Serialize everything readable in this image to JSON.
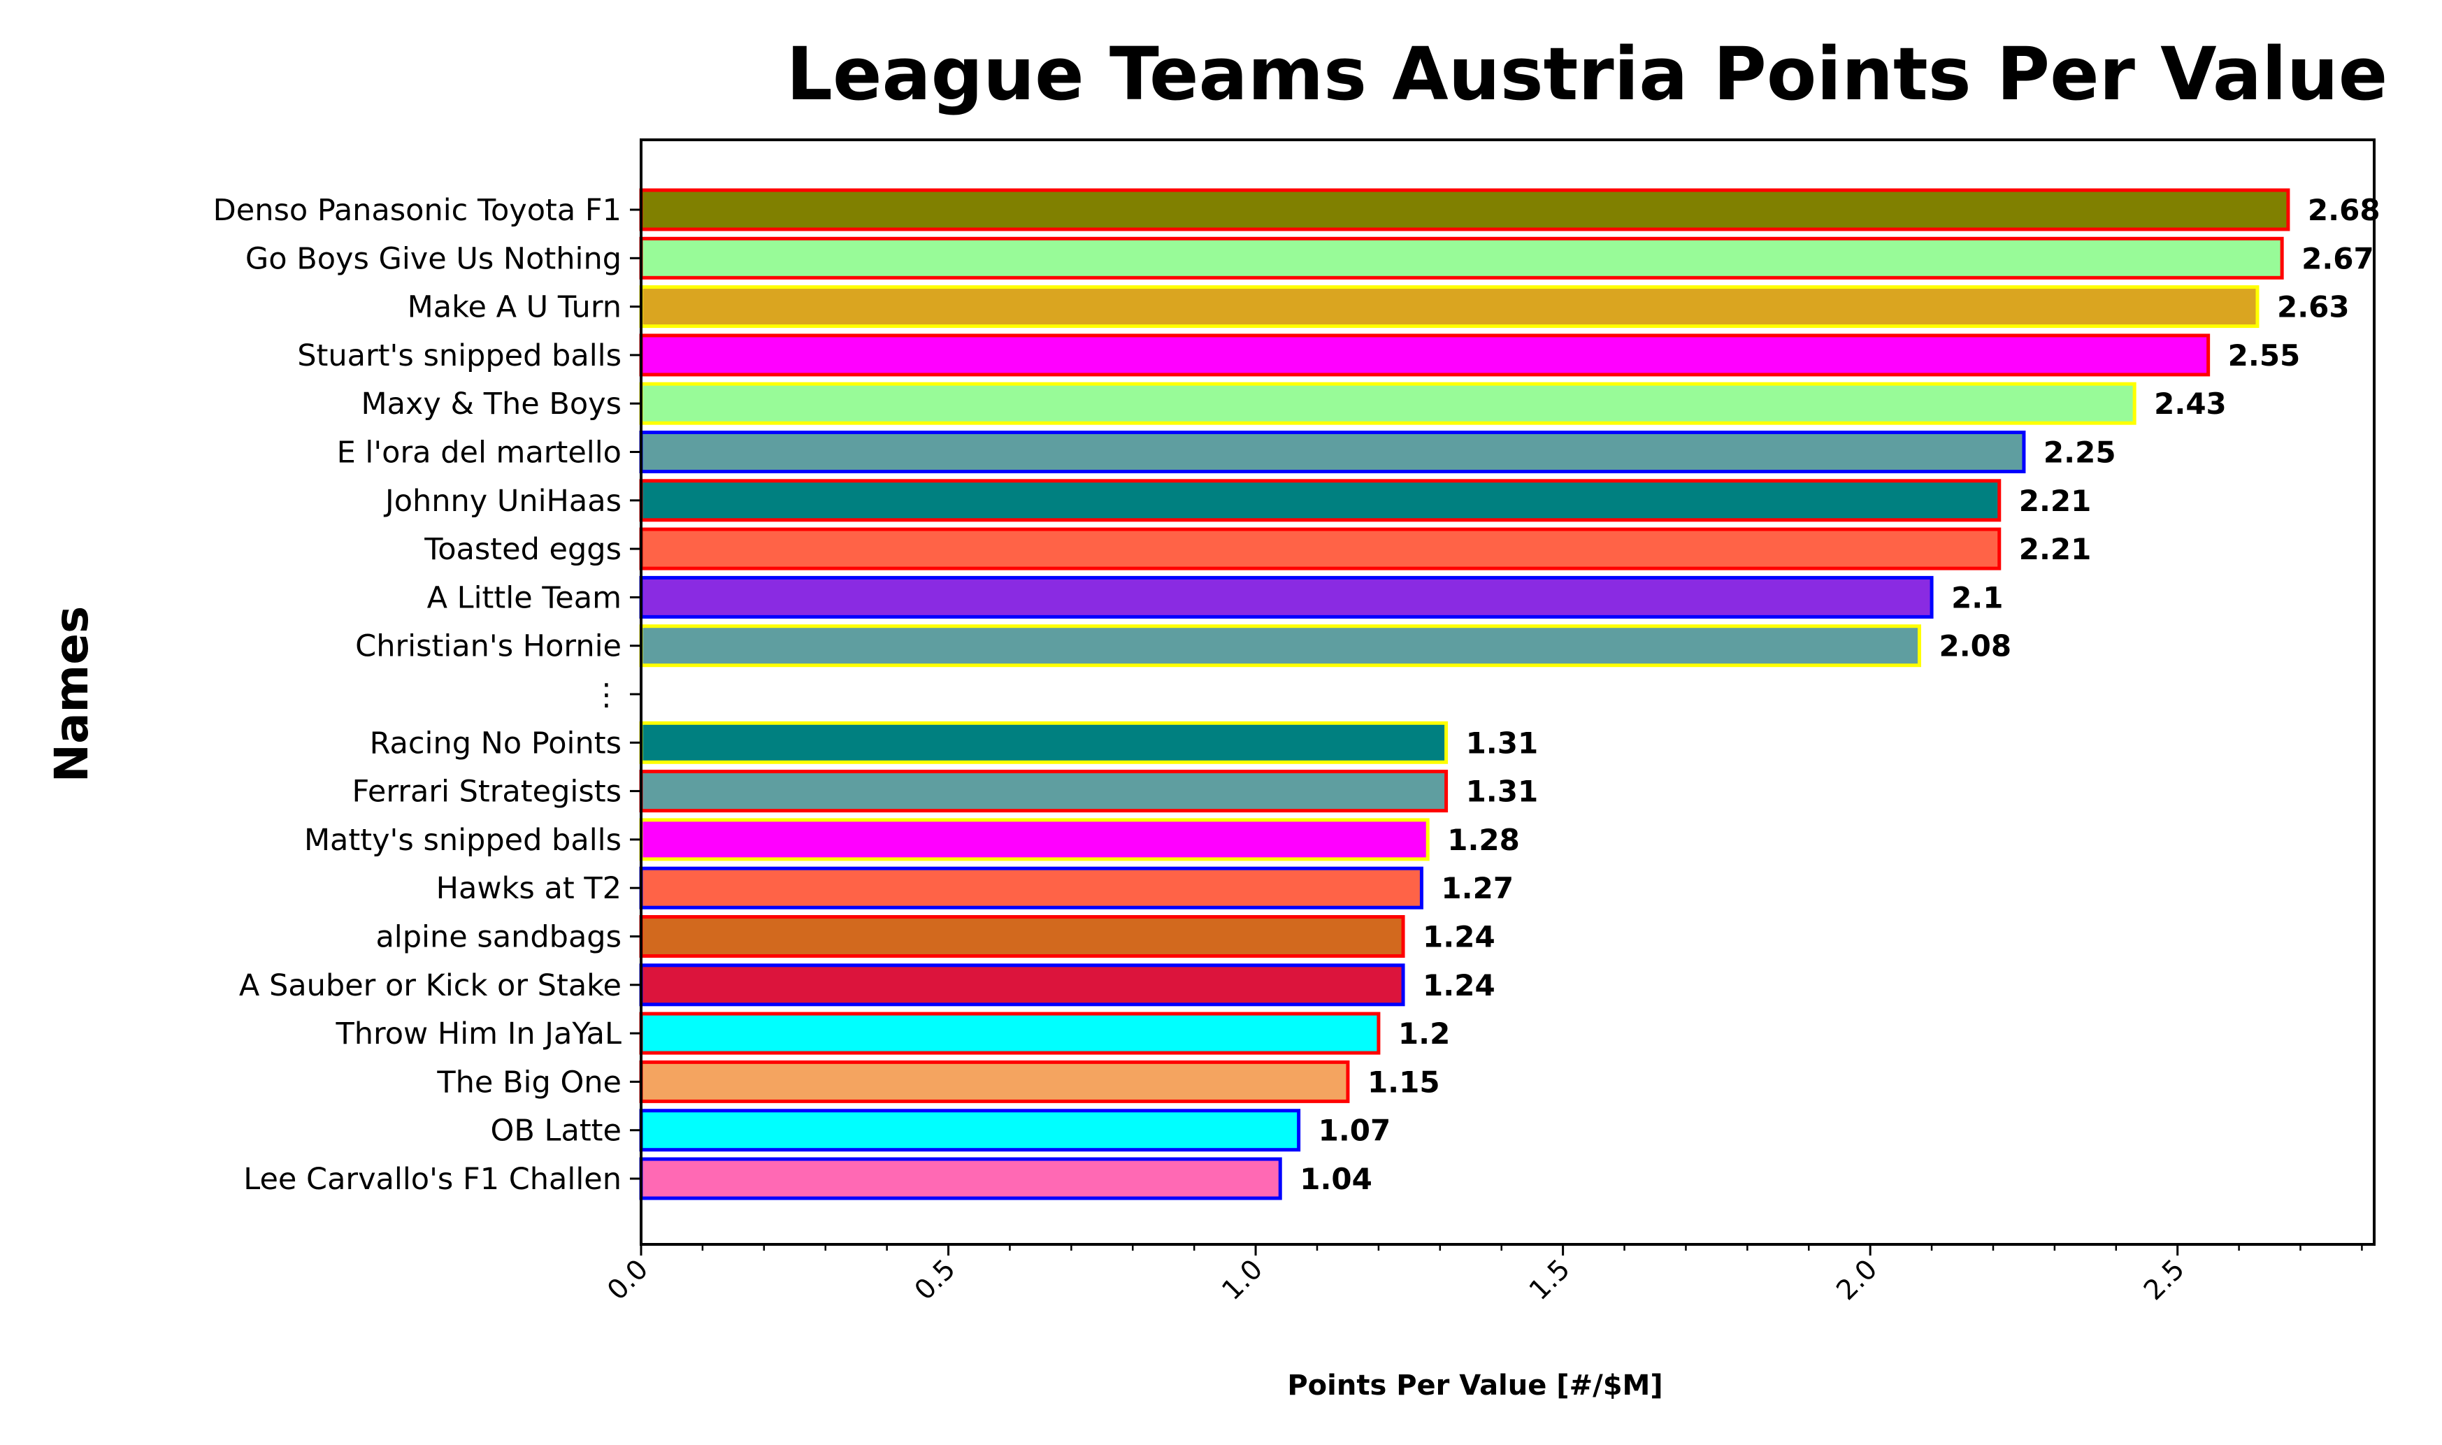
{
  "chart_data": {
    "type": "bar",
    "orientation": "horizontal",
    "title": "League Teams Austria Points Per Value",
    "xlabel": "Points Per Value [#/$M]",
    "ylabel": "Names",
    "xlim": [
      0,
      2.82
    ],
    "x_ticks": [
      "0.0",
      "0.5",
      "1.0",
      "1.5",
      "2.0",
      "2.5"
    ],
    "x_tick_values": [
      0,
      0.5,
      1.0,
      1.5,
      2.0,
      2.5
    ],
    "grid": false,
    "legend": "none",
    "categories": [
      "Denso Panasonic Toyota F1",
      "Go Boys Give Us Nothing",
      "Make A U Turn",
      "Stuart's snipped balls",
      "Maxy & The Boys",
      "E l'ora del martello",
      "Johnny UniHaas",
      "Toasted eggs",
      "A Little Team",
      "Christian's Hornie",
      "⋮",
      "Racing No Points",
      "Ferrari Strategists",
      "Matty's snipped balls",
      "Hawks at T2",
      "alpine sandbags",
      "A Sauber or Kick or Stake",
      "Throw Him In JaYaL",
      "The Big One",
      "OB Latte",
      "Lee Carvallo's F1 Challen"
    ],
    "values": [
      2.68,
      2.67,
      2.63,
      2.55,
      2.43,
      2.25,
      2.21,
      2.21,
      2.1,
      2.08,
      null,
      1.31,
      1.31,
      1.28,
      1.27,
      1.24,
      1.24,
      1.2,
      1.15,
      1.07,
      1.04
    ],
    "value_labels": [
      "2.68",
      "2.67",
      "2.63",
      "2.55",
      "2.43",
      "2.25",
      "2.21",
      "2.21",
      "2.1",
      "2.08",
      "",
      "1.31",
      "1.31",
      "1.28",
      "1.27",
      "1.24",
      "1.24",
      "1.2",
      "1.15",
      "1.07",
      "1.04"
    ],
    "fill_colors": [
      "#808000",
      "#98fb98",
      "#daa520",
      "#ff00ff",
      "#98fb98",
      "#5f9ea0",
      "#008080",
      "#ff6347",
      "#8a2be2",
      "#5f9ea0",
      null,
      "#008080",
      "#5f9ea0",
      "#ff00ff",
      "#ff6347",
      "#d2691e",
      "#dc143c",
      "#00ffff",
      "#f4a460",
      "#00ffff",
      "#ff69b4"
    ],
    "edge_colors": [
      "#ff0000",
      "#ff0000",
      "#ffff00",
      "#ff0000",
      "#ffff00",
      "#0000ff",
      "#ff0000",
      "#ff0000",
      "#0000ff",
      "#ffff00",
      null,
      "#ffff00",
      "#ff0000",
      "#ffff00",
      "#0000ff",
      "#ff0000",
      "#0000ff",
      "#ff0000",
      "#ff0000",
      "#0000ff",
      "#0000ff"
    ]
  }
}
